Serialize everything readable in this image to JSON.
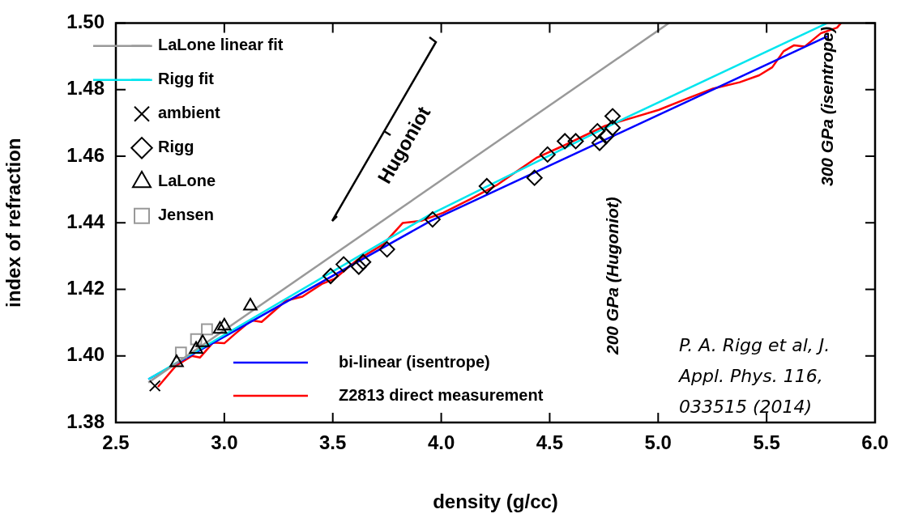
{
  "chart_data": {
    "type": "line",
    "xlabel": "density (g/cc)",
    "ylabel": "index of refraction",
    "xlim": [
      2.5,
      6.0
    ],
    "ylim": [
      1.38,
      1.5
    ],
    "xticks": [
      2.5,
      {
        "value": 3,
        "label": "3.0"
      },
      3.5,
      {
        "value": 4,
        "label": "4.0"
      },
      4.5,
      {
        "value": 5,
        "label": "5.0"
      },
      5.5,
      {
        "value": 6,
        "label": "6.0"
      }
    ],
    "yticks": [
      1.38,
      {
        "value": 1.4,
        "label": "1.40"
      },
      1.42,
      1.44,
      1.46,
      1.48,
      {
        "value": 1.5,
        "label": "1.50"
      }
    ],
    "legend": "top left",
    "series": [
      {
        "name": "LaLone linear fit",
        "color": "#999999",
        "x": [
          2.65,
          5.05
        ],
        "values": [
          1.392,
          1.5
        ]
      },
      {
        "name": "Rigg fit",
        "color": "#00e5ee",
        "x": [
          2.65,
          3.95,
          4.85,
          5.78
        ],
        "values": [
          1.393,
          1.4425,
          1.4715,
          1.5
        ]
      },
      {
        "name": "ambient",
        "type": "scatter",
        "marker": "cross",
        "color": "#000000",
        "x": [
          2.68
        ],
        "values": [
          1.391
        ]
      },
      {
        "name": "Rigg",
        "type": "scatter",
        "marker": "diamond",
        "color": "#000000",
        "x": [
          3.49,
          3.55,
          3.62,
          3.64,
          3.75,
          3.96,
          4.21,
          4.43,
          4.49,
          4.57,
          4.62,
          4.72,
          4.73,
          4.76,
          4.79,
          4.79
        ],
        "values": [
          1.424,
          1.4275,
          1.4268,
          1.4282,
          1.432,
          1.441,
          1.451,
          1.4535,
          1.4605,
          1.4645,
          1.4645,
          1.4675,
          1.464,
          1.466,
          1.4685,
          1.472
        ]
      },
      {
        "name": "LaLone",
        "type": "scatter",
        "marker": "triangle",
        "color": "#000000",
        "x": [
          2.78,
          2.87,
          2.9,
          2.98,
          3.0,
          3.12
        ],
        "values": [
          1.398,
          1.402,
          1.404,
          1.408,
          1.409,
          1.415
        ]
      },
      {
        "name": "Jensen",
        "type": "scatter",
        "marker": "square",
        "color": "#999999",
        "x": [
          2.8,
          2.87,
          2.92
        ],
        "values": [
          1.401,
          1.405,
          1.408
        ]
      },
      {
        "name": "bi-linear (isentrope)",
        "color": "#0000ff",
        "x": [
          2.65,
          3.95,
          5.78
        ],
        "values": [
          1.393,
          1.4405,
          1.496
        ]
      },
      {
        "name": "Z2813 direct measurement",
        "color": "#ff0000",
        "x": [
          2.694,
          2.776,
          2.851,
          2.888,
          2.948,
          3.0,
          3.049,
          3.124,
          3.172,
          3.284,
          3.36,
          3.449,
          3.509,
          3.61,
          3.733,
          3.822,
          3.908,
          4.009,
          4.132,
          4.256,
          4.356,
          4.442,
          4.555,
          4.655,
          4.756,
          4.88,
          5.003,
          5.13,
          5.253,
          5.376,
          5.466,
          5.526,
          5.578,
          5.627,
          5.675,
          5.75,
          5.825,
          5.843
        ],
        "values": [
          1.3907,
          1.397,
          1.4,
          1.3995,
          1.404,
          1.4038,
          1.4066,
          1.4107,
          1.4102,
          1.4166,
          1.4178,
          1.4216,
          1.4232,
          1.4287,
          1.4335,
          1.4399,
          1.4406,
          1.443,
          1.447,
          1.4513,
          1.4558,
          1.4596,
          1.4629,
          1.466,
          1.4691,
          1.4715,
          1.4739,
          1.4772,
          1.4803,
          1.4822,
          1.4843,
          1.4867,
          1.4915,
          1.4933,
          1.4929,
          1.4969,
          1.4986,
          1.5
        ]
      }
    ],
    "annotations": [
      "Hugoniot",
      "P. A. Rigg et al, J. Appl. Phys. 116, 033515 (2014)",
      "200 GPa (Hugoniot)",
      "300 GPa (isentrope)"
    ]
  }
}
